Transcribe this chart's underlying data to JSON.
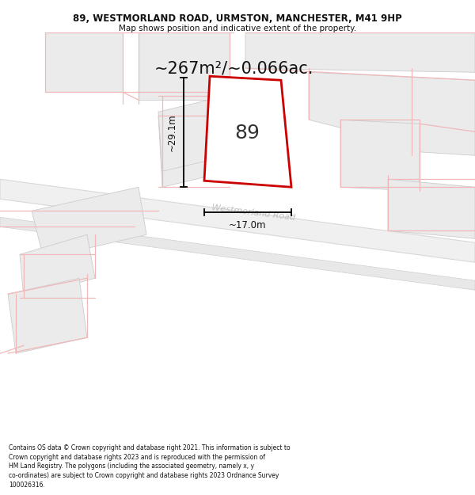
{
  "title_line1": "89, WESTMORLAND ROAD, URMSTON, MANCHESTER, M41 9HP",
  "title_line2": "Map shows position and indicative extent of the property.",
  "area_text": "~267m²/~0.066ac.",
  "road_label": "Westmorland Road",
  "property_number": "89",
  "dim_width": "~17.0m",
  "dim_height": "~29.1m",
  "footer_lines": [
    "Contains OS data © Crown copyright and database right 2021. This information is subject to",
    "Crown copyright and database rights 2023 and is reproduced with the permission of",
    "HM Land Registry. The polygons (including the associated geometry, namely x, y",
    "co-ordinates) are subject to Crown copyright and database rights 2023 Ordnance Survey",
    "100026316."
  ],
  "bg_color": "#ffffff",
  "map_bg": "#ffffff",
  "property_fill": "#ffffff",
  "property_edge": "#cc0000",
  "parcel_line_color": "#f0b8b8",
  "building_fill": "#ebebeb",
  "building_edge": "#cccccc",
  "road_fill": "#f8f8f8",
  "road_edge": "#cccccc"
}
